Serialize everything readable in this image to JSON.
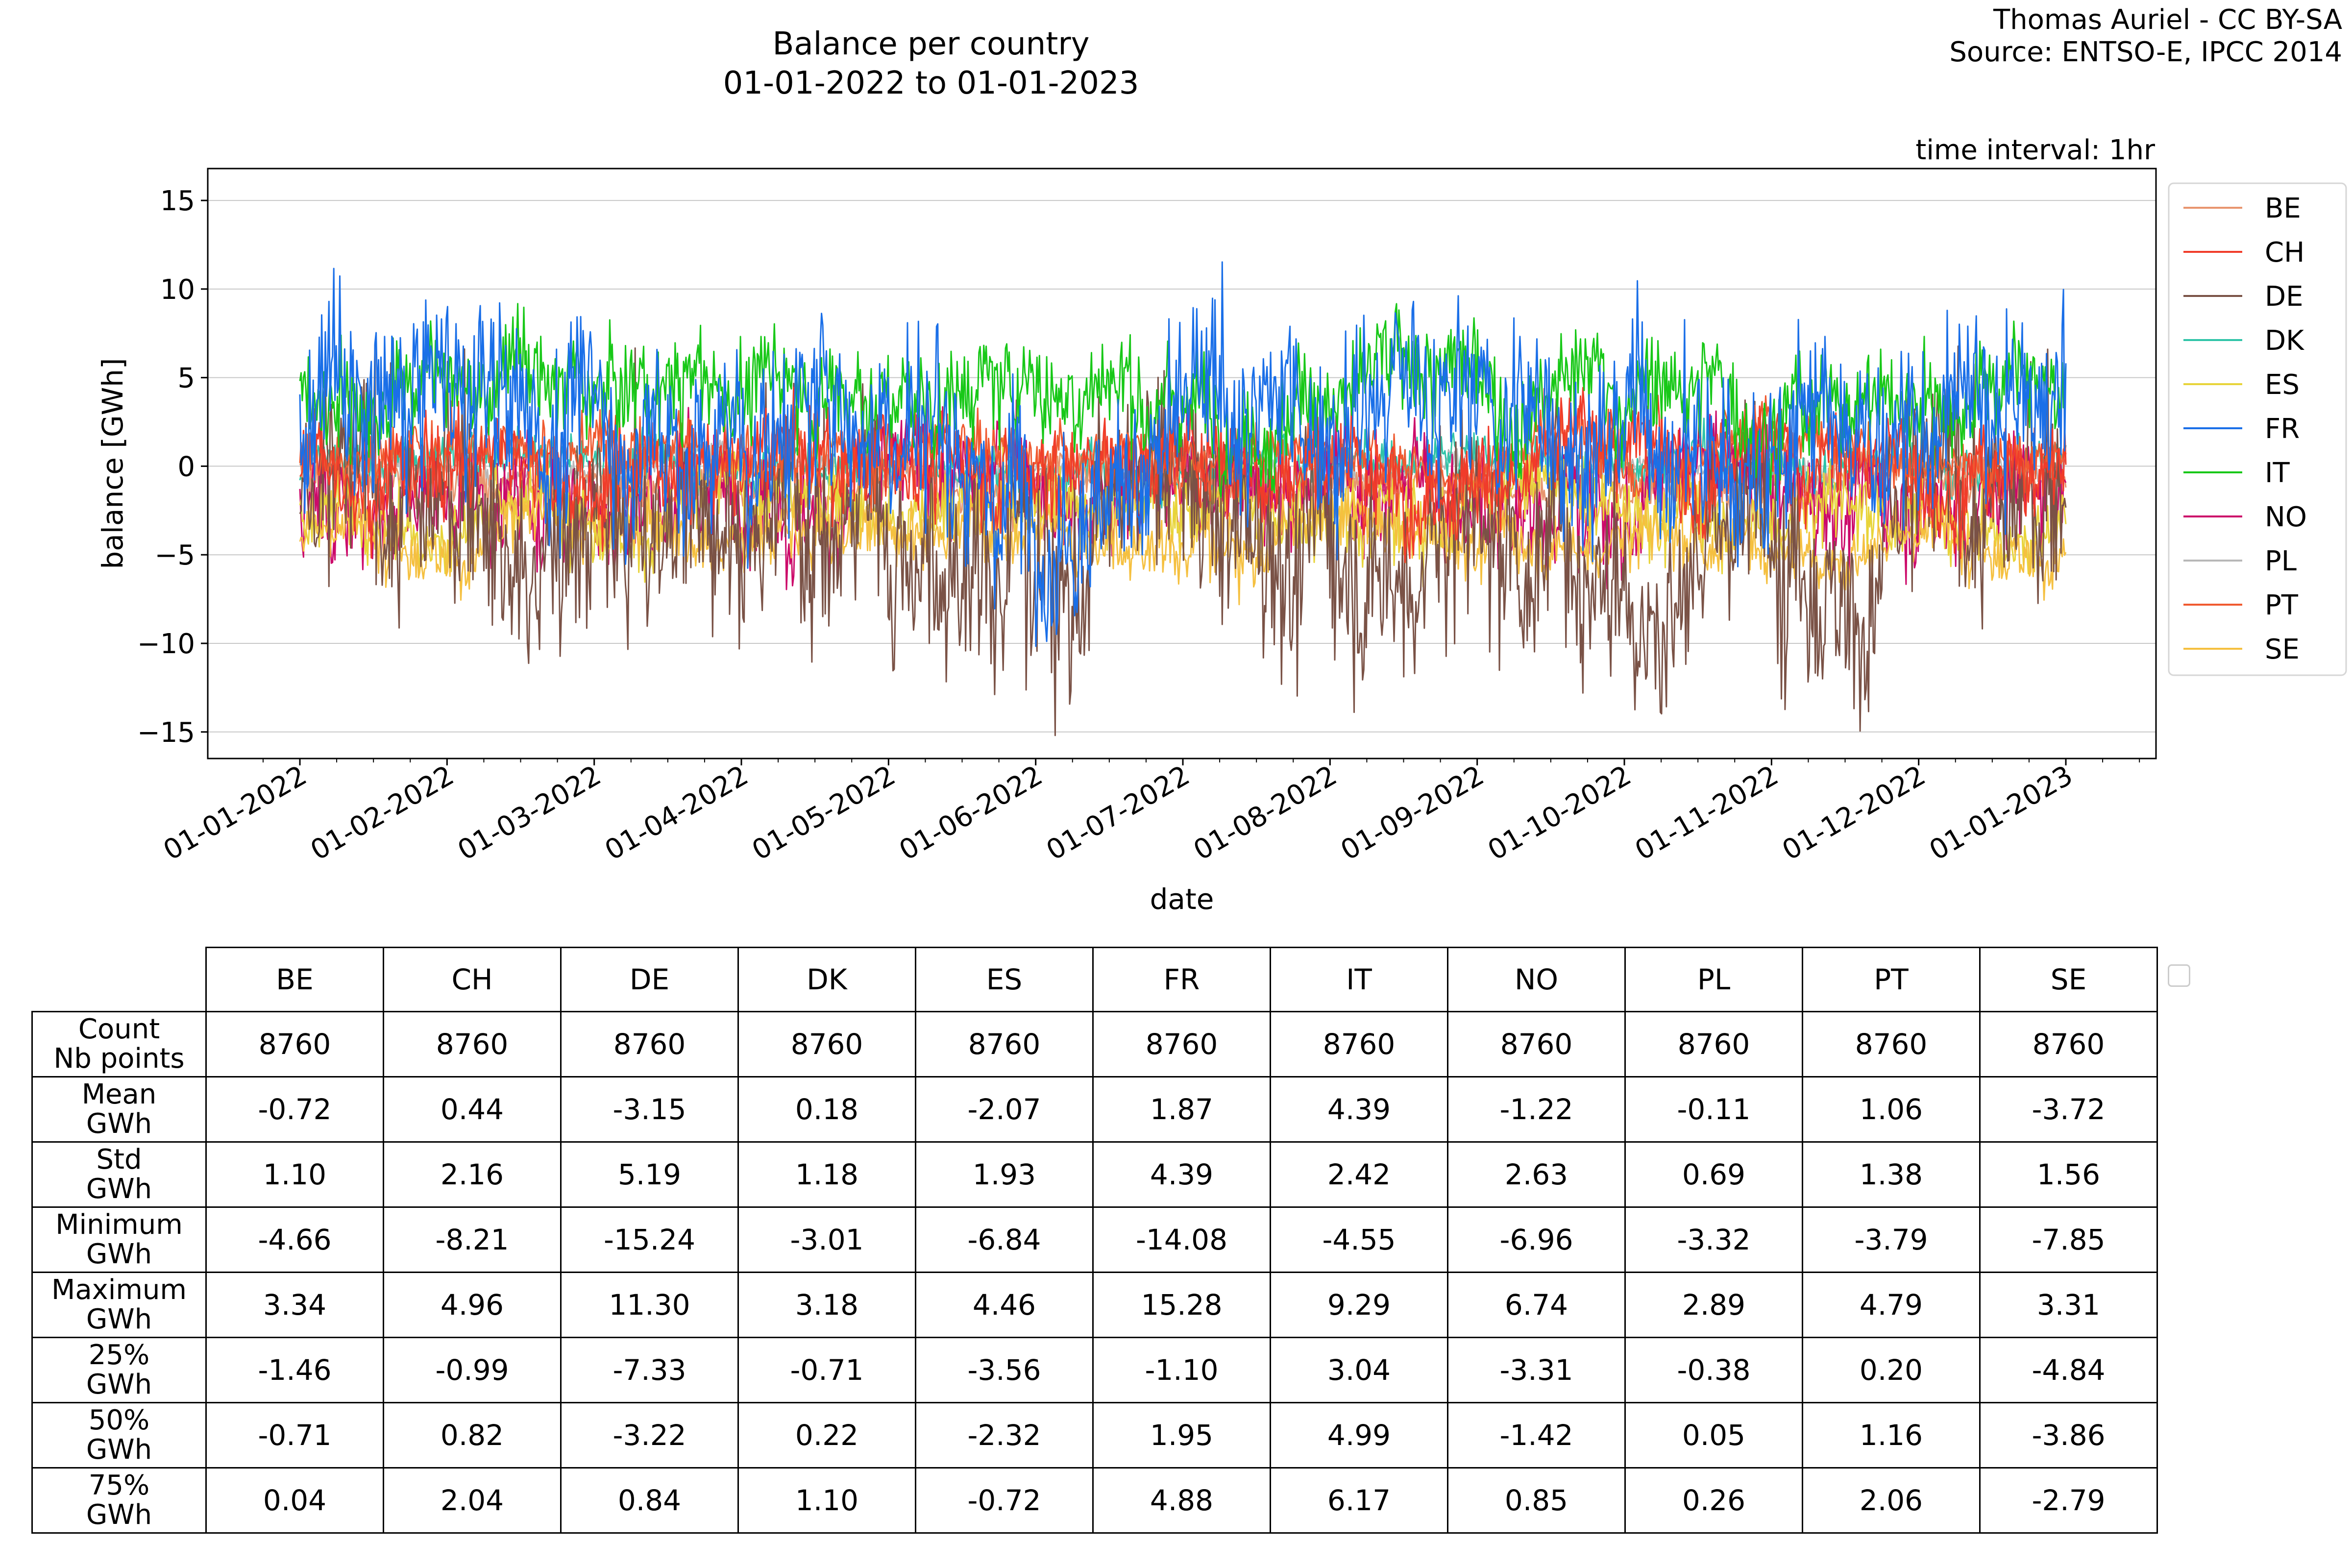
{
  "title": {
    "line1": "Balance per country",
    "line2": "01-01-2022 to 01-01-2023"
  },
  "credit": {
    "line1": "Thomas Auriel - CC BY-SA",
    "line2": "Source: ENTSO-E, IPCC 2014"
  },
  "chart_data": {
    "type": "line",
    "annotation": "time interval: 1hr",
    "xlabel": "date",
    "ylabel": "balance [GWh]",
    "ylim": [
      -16.5,
      16.8
    ],
    "yticks": [
      15,
      10,
      5,
      0,
      -5,
      -10,
      -15
    ],
    "ytick_labels": [
      "15",
      "10",
      "5",
      "0",
      "−5",
      "−10",
      "−15"
    ],
    "xticks": [
      "01-01-2022",
      "01-02-2022",
      "01-03-2022",
      "01-04-2022",
      "01-05-2022",
      "01-06-2022",
      "01-07-2022",
      "01-08-2022",
      "01-09-2022",
      "01-10-2022",
      "01-11-2022",
      "01-12-2022",
      "01-01-2023"
    ],
    "grid": "horizontal",
    "legend_position": "right",
    "series": [
      {
        "name": "BE",
        "color": "#e8956e",
        "mean": -0.72,
        "std": 1.1,
        "min": -4.66,
        "max": 3.34
      },
      {
        "name": "CH",
        "color": "#f03c2a",
        "mean": 0.44,
        "std": 2.16,
        "min": -8.21,
        "max": 4.96
      },
      {
        "name": "DE",
        "color": "#7a5246",
        "mean": -3.15,
        "std": 5.19,
        "min": -15.24,
        "max": 11.3
      },
      {
        "name": "DK",
        "color": "#2fc4a8",
        "mean": 0.18,
        "std": 1.18,
        "min": -3.01,
        "max": 3.18
      },
      {
        "name": "ES",
        "color": "#e8d43a",
        "mean": -2.07,
        "std": 1.93,
        "min": -6.84,
        "max": 4.46
      },
      {
        "name": "FR",
        "color": "#1a6fe8",
        "mean": 1.87,
        "std": 4.39,
        "min": -14.08,
        "max": 15.28
      },
      {
        "name": "IT",
        "color": "#18c818",
        "mean": 4.39,
        "std": 2.42,
        "min": -4.55,
        "max": 9.29
      },
      {
        "name": "NO",
        "color": "#cc0a6a",
        "mean": -1.22,
        "std": 2.63,
        "min": -6.96,
        "max": 6.74
      },
      {
        "name": "PL",
        "color": "#b8b8b8",
        "mean": -0.11,
        "std": 0.69,
        "min": -3.32,
        "max": 2.89
      },
      {
        "name": "PT",
        "color": "#f05a30",
        "mean": 1.06,
        "std": 1.38,
        "min": -3.79,
        "max": 4.79
      },
      {
        "name": "SE",
        "color": "#f5c040",
        "mean": -3.72,
        "std": 1.56,
        "min": -7.85,
        "max": 3.31
      }
    ]
  },
  "table": {
    "columns": [
      "BE",
      "CH",
      "DE",
      "DK",
      "ES",
      "FR",
      "IT",
      "NO",
      "PL",
      "PT",
      "SE"
    ],
    "rows": [
      {
        "label1": "Count",
        "label2": "Nb points",
        "values": [
          "8760",
          "8760",
          "8760",
          "8760",
          "8760",
          "8760",
          "8760",
          "8760",
          "8760",
          "8760",
          "8760"
        ]
      },
      {
        "label1": "Mean",
        "label2": "GWh",
        "values": [
          "-0.72",
          "0.44",
          "-3.15",
          "0.18",
          "-2.07",
          "1.87",
          "4.39",
          "-1.22",
          "-0.11",
          "1.06",
          "-3.72"
        ]
      },
      {
        "label1": "Std",
        "label2": "GWh",
        "values": [
          "1.10",
          "2.16",
          "5.19",
          "1.18",
          "1.93",
          "4.39",
          "2.42",
          "2.63",
          "0.69",
          "1.38",
          "1.56"
        ]
      },
      {
        "label1": "Minimum",
        "label2": "GWh",
        "values": [
          "-4.66",
          "-8.21",
          "-15.24",
          "-3.01",
          "-6.84",
          "-14.08",
          "-4.55",
          "-6.96",
          "-3.32",
          "-3.79",
          "-7.85"
        ]
      },
      {
        "label1": "Maximum",
        "label2": "GWh",
        "values": [
          "3.34",
          "4.96",
          "11.30",
          "3.18",
          "4.46",
          "15.28",
          "9.29",
          "6.74",
          "2.89",
          "4.79",
          "3.31"
        ]
      },
      {
        "label1": "25%",
        "label2": "GWh",
        "values": [
          "-1.46",
          "-0.99",
          "-7.33",
          "-0.71",
          "-3.56",
          "-1.10",
          "3.04",
          "-3.31",
          "-0.38",
          "0.20",
          "-4.84"
        ]
      },
      {
        "label1": "50%",
        "label2": "GWh",
        "values": [
          "-0.71",
          "0.82",
          "-3.22",
          "0.22",
          "-2.32",
          "1.95",
          "4.99",
          "-1.42",
          "0.05",
          "1.16",
          "-3.86"
        ]
      },
      {
        "label1": "75%",
        "label2": "GWh",
        "values": [
          "0.04",
          "2.04",
          "0.84",
          "1.10",
          "-0.72",
          "4.88",
          "6.17",
          "0.85",
          "0.26",
          "2.06",
          "-2.79"
        ]
      }
    ]
  }
}
